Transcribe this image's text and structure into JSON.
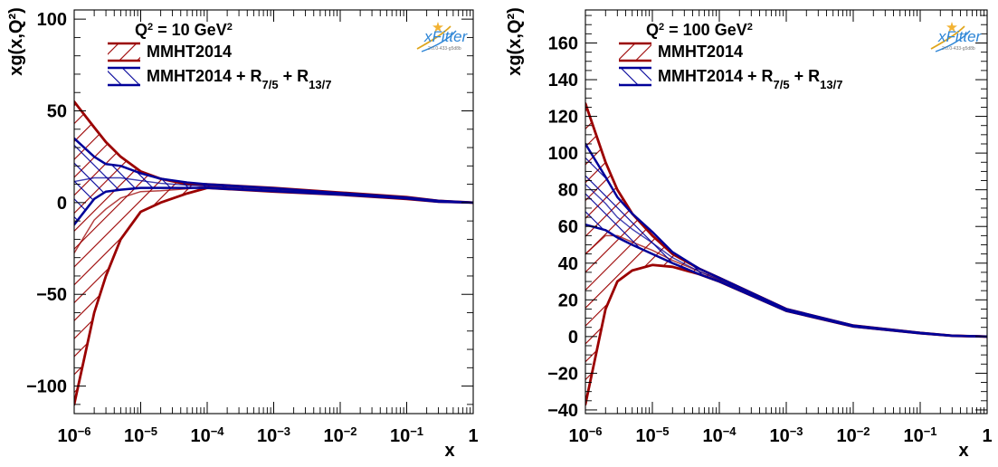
{
  "chart_data": [
    {
      "type": "area",
      "title": "Q² = 10 GeV²",
      "xlabel": "x",
      "ylabel": "xg(x,Q²)",
      "xscale": "log",
      "xlim": [
        1e-06,
        1
      ],
      "ylim": [
        -115,
        105
      ],
      "x_ticks": [
        {
          "value": 1e-06,
          "base": "10",
          "exponent": "−6"
        },
        {
          "value": 1e-05,
          "base": "10",
          "exponent": "−5"
        },
        {
          "value": 0.0001,
          "base": "10",
          "exponent": "−4"
        },
        {
          "value": 0.001,
          "base": "10",
          "exponent": "−3"
        },
        {
          "value": 0.01,
          "base": "10",
          "exponent": "−2"
        },
        {
          "value": 0.1,
          "base": "10",
          "exponent": "−1"
        },
        {
          "value": 1,
          "base": "1",
          "exponent": ""
        }
      ],
      "y_ticks": [
        {
          "value": 100,
          "label": "100"
        },
        {
          "value": 50,
          "label": "50"
        },
        {
          "value": 0,
          "label": "0"
        },
        {
          "value": -50,
          "label": "−50"
        },
        {
          "value": -100,
          "label": "−100"
        }
      ],
      "legend": {
        "position": "top-left",
        "title": {
          "q": "Q",
          "q_exp": "2",
          "eq": " = 10 GeV",
          "unit_exp": "2"
        },
        "entries": [
          {
            "text": "MMHT2014",
            "color": "#9b0000",
            "hatch": "forward"
          },
          {
            "text_parts": [
              {
                "text": "MMHT2014 + R",
                "sub": ""
              },
              {
                "text": "",
                "sub": "7/5"
              },
              {
                "text": " + R",
                "sub": ""
              },
              {
                "text": "",
                "sub": "13/7"
              }
            ],
            "color": "#000099",
            "hatch": "backward"
          }
        ]
      },
      "series": [
        {
          "name": "MMHT2014",
          "color": "#9b0000",
          "x": [
            1e-06,
            2e-06,
            3e-06,
            5e-06,
            1e-05,
            2e-05,
            5e-05,
            0.0001,
            0.001,
            0.01,
            0.1,
            0.3,
            1
          ],
          "upper": [
            55,
            41,
            33,
            25,
            17,
            13,
            10,
            10,
            8,
            5.5,
            3,
            1,
            0
          ],
          "lower": [
            -110,
            -60,
            -40,
            -20,
            -5,
            0,
            5,
            8,
            6,
            4.3,
            2,
            0.5,
            0
          ]
        },
        {
          "name": "MMHT2014 + R7/5 + R13/7",
          "color": "#000099",
          "x": [
            1e-06,
            2e-06,
            3e-06,
            5e-06,
            1e-05,
            2e-05,
            5e-05,
            0.0001,
            0.001,
            0.01,
            0.1,
            0.3,
            1
          ],
          "upper": [
            35,
            25,
            21,
            20,
            16,
            13,
            11,
            10,
            7.8,
            5.2,
            2.8,
            1,
            0
          ],
          "lower": [
            -12,
            2,
            6,
            7,
            8,
            8,
            8,
            8,
            6.2,
            4.4,
            2.2,
            0.5,
            0
          ]
        }
      ],
      "logo": {
        "word": "xFitter",
        "version": "2.0.0-433-g5d8b"
      }
    },
    {
      "type": "area",
      "title": "Q² = 100 GeV²",
      "xlabel": "x",
      "ylabel": "xg(x,Q²)",
      "xscale": "log",
      "xlim": [
        1e-06,
        1
      ],
      "ylim": [
        -42,
        178
      ],
      "x_ticks": [
        {
          "value": 1e-06,
          "base": "10",
          "exponent": "−6"
        },
        {
          "value": 1e-05,
          "base": "10",
          "exponent": "−5"
        },
        {
          "value": 0.0001,
          "base": "10",
          "exponent": "−4"
        },
        {
          "value": 0.001,
          "base": "10",
          "exponent": "−3"
        },
        {
          "value": 0.01,
          "base": "10",
          "exponent": "−2"
        },
        {
          "value": 0.1,
          "base": "10",
          "exponent": "−1"
        },
        {
          "value": 1,
          "base": "1",
          "exponent": ""
        }
      ],
      "y_ticks": [
        {
          "value": 160,
          "label": "160"
        },
        {
          "value": 140,
          "label": "140"
        },
        {
          "value": 120,
          "label": "120"
        },
        {
          "value": 100,
          "label": "100"
        },
        {
          "value": 80,
          "label": "80"
        },
        {
          "value": 60,
          "label": "60"
        },
        {
          "value": 40,
          "label": "40"
        },
        {
          "value": 20,
          "label": "20"
        },
        {
          "value": 0,
          "label": "0"
        },
        {
          "value": -20,
          "label": "−20"
        },
        {
          "value": -40,
          "label": "−40"
        }
      ],
      "legend": {
        "position": "top-left",
        "title": {
          "q": "Q",
          "q_exp": "2",
          "eq": " = 100 GeV",
          "unit_exp": "2"
        },
        "entries": [
          {
            "text": "MMHT2014",
            "color": "#9b0000",
            "hatch": "forward"
          },
          {
            "text_parts": [
              {
                "text": "MMHT2014 + R",
                "sub": ""
              },
              {
                "text": "",
                "sub": "7/5"
              },
              {
                "text": " + R",
                "sub": ""
              },
              {
                "text": "",
                "sub": "13/7"
              }
            ],
            "color": "#000099",
            "hatch": "backward"
          }
        ]
      },
      "series": [
        {
          "name": "MMHT2014",
          "color": "#9b0000",
          "x": [
            1e-06,
            2e-06,
            3e-06,
            5e-06,
            1e-05,
            2e-05,
            5e-05,
            0.0001,
            0.001,
            0.01,
            0.1,
            0.3,
            1
          ],
          "upper": [
            127,
            95,
            80,
            67,
            55,
            45,
            37,
            32,
            15,
            6,
            2,
            0.5,
            0
          ],
          "lower": [
            -37,
            15,
            30,
            36,
            39,
            38,
            34,
            30,
            14,
            5.5,
            1.8,
            0.4,
            0
          ]
        },
        {
          "name": "MMHT2014 + R7/5 + R13/7",
          "color": "#000099",
          "x": [
            1e-06,
            2e-06,
            3e-06,
            5e-06,
            1e-05,
            2e-05,
            5e-05,
            0.0001,
            0.001,
            0.01,
            0.1,
            0.3,
            1
          ],
          "upper": [
            105,
            87,
            76,
            67,
            57,
            46,
            37,
            32,
            15,
            6,
            2,
            0.5,
            0
          ],
          "lower": [
            61,
            58,
            54,
            50,
            45,
            40,
            34,
            30,
            14,
            5.5,
            1.8,
            0.4,
            0
          ]
        }
      ],
      "logo": {
        "word": "xFitter",
        "version": "2.0.0-433-g5d8b"
      }
    }
  ]
}
